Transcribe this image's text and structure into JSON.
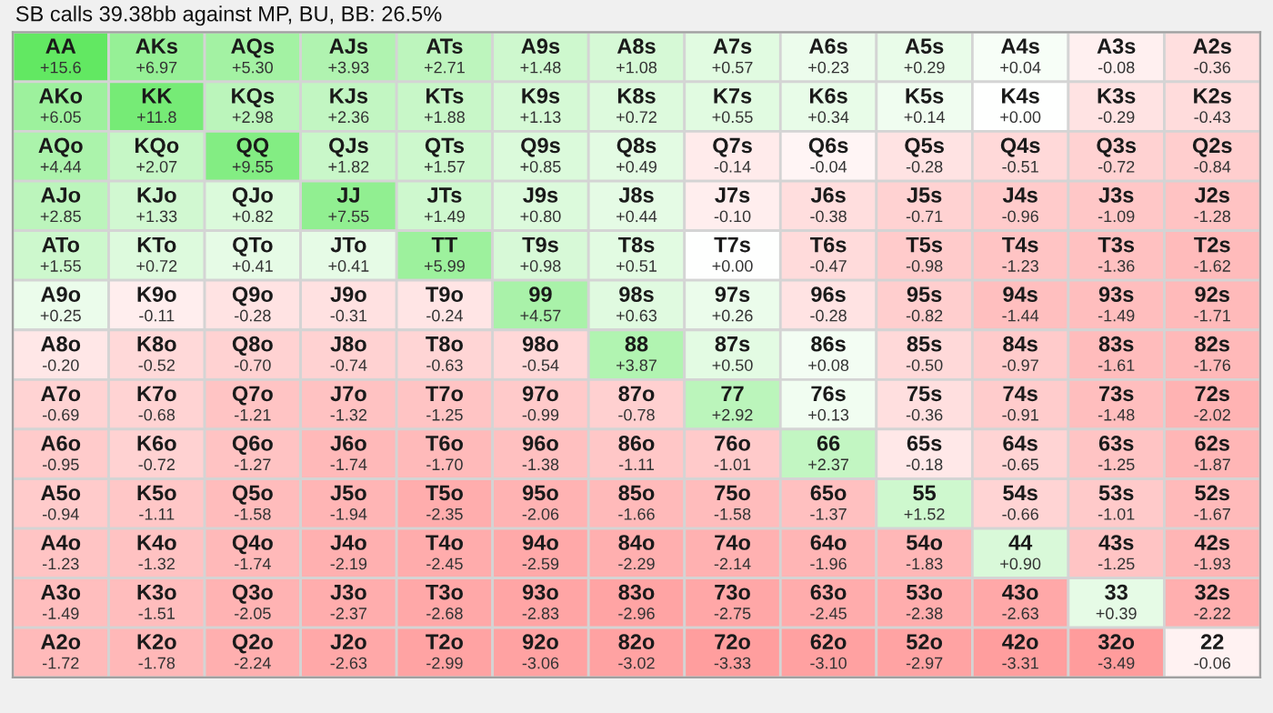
{
  "chart_data": {
    "type": "heatmap",
    "title": "SB calls 39.38bb against MP, BU, BB: 26.5%",
    "categories": [
      null,
      null,
      null,
      null,
      null,
      null,
      null,
      null,
      null,
      null,
      null,
      null,
      null
    ],
    "y_categories": [
      null,
      null,
      null,
      null,
      null,
      null,
      null,
      null,
      null,
      null,
      null,
      null,
      null
    ],
    "cells": [
      [
        15.6,
        6.97,
        5.3,
        3.93,
        2.71,
        1.48,
        1.08,
        0.57,
        0.23,
        0.29,
        0.04,
        -0.08,
        -0.36
      ],
      [
        6.05,
        11.8,
        2.98,
        2.36,
        1.88,
        1.13,
        0.72,
        0.55,
        0.34,
        0.14,
        0.0,
        -0.29,
        -0.43
      ],
      [
        4.44,
        2.07,
        9.55,
        1.82,
        1.57,
        0.85,
        0.49,
        -0.14,
        -0.04,
        -0.28,
        -0.51,
        -0.72,
        -0.84
      ],
      [
        2.85,
        1.33,
        0.82,
        7.55,
        1.49,
        0.8,
        0.44,
        -0.1,
        -0.38,
        -0.71,
        -0.96,
        -1.09,
        -1.28
      ],
      [
        1.55,
        0.72,
        0.41,
        0.41,
        5.99,
        0.98,
        0.51,
        0.0,
        -0.47,
        -0.98,
        -1.23,
        -1.36,
        -1.62
      ],
      [
        0.25,
        -0.11,
        -0.28,
        -0.31,
        -0.24,
        4.57,
        0.63,
        0.26,
        -0.28,
        -0.82,
        -1.44,
        -1.49,
        -1.71
      ],
      [
        -0.2,
        -0.52,
        -0.7,
        -0.74,
        -0.63,
        -0.54,
        3.87,
        0.5,
        0.08,
        -0.5,
        -0.97,
        -1.61,
        -1.76
      ],
      [
        -0.69,
        -0.68,
        -1.21,
        -1.32,
        -1.25,
        -0.99,
        -0.78,
        2.92,
        0.13,
        -0.36,
        -0.91,
        -1.48,
        -2.02
      ],
      [
        -0.95,
        -0.72,
        -1.27,
        -1.74,
        -1.7,
        -1.38,
        -1.11,
        -1.01,
        2.37,
        -0.18,
        -0.65,
        -1.25,
        -1.87
      ],
      [
        -0.94,
        -1.11,
        -1.58,
        -1.94,
        -2.35,
        -2.06,
        -1.66,
        -1.58,
        -1.37,
        1.52,
        -0.66,
        -1.01,
        -1.67
      ],
      [
        -1.23,
        -1.32,
        -1.74,
        -2.19,
        -2.45,
        -2.59,
        -2.29,
        -2.14,
        -1.96,
        -1.83,
        0.9,
        -1.25,
        -1.93
      ],
      [
        -1.49,
        -1.51,
        -2.05,
        -2.37,
        -2.68,
        -2.83,
        -2.96,
        -2.75,
        -2.45,
        -2.38,
        -2.63,
        0.39,
        -2.22
      ],
      [
        -1.72,
        -1.78,
        -2.24,
        -2.63,
        -2.99,
        -3.06,
        -3.02,
        -3.33,
        -3.1,
        -2.97,
        -3.31,
        -3.49,
        -0.06
      ]
    ],
    "cell_labels": [
      [
        "+15.6",
        "+6.97",
        "+5.30",
        "+3.93",
        "+2.71",
        "+1.48",
        "+1.08",
        "+0.57",
        "+0.23",
        "+0.29",
        "+0.04",
        "-0.08",
        "-0.36"
      ],
      [
        "+6.05",
        "+11.8",
        "+2.98",
        "+2.36",
        "+1.88",
        "+1.13",
        "+0.72",
        "+0.55",
        "+0.34",
        "+0.14",
        "+0.00",
        "-0.29",
        "-0.43"
      ],
      [
        "+4.44",
        "+2.07",
        "+9.55",
        "+1.82",
        "+1.57",
        "+0.85",
        "+0.49",
        "-0.14",
        "-0.04",
        "-0.28",
        "-0.51",
        "-0.72",
        "-0.84"
      ],
      [
        "+2.85",
        "+1.33",
        "+0.82",
        "+7.55",
        "+1.49",
        "+0.80",
        "+0.44",
        "-0.10",
        "-0.38",
        "-0.71",
        "-0.96",
        "-1.09",
        "-1.28"
      ],
      [
        "+1.55",
        "+0.72",
        "+0.41",
        "+0.41",
        "+5.99",
        "+0.98",
        "+0.51",
        "+0.00",
        "-0.47",
        "-0.98",
        "-1.23",
        "-1.36",
        "-1.62"
      ],
      [
        "+0.25",
        "-0.11",
        "-0.28",
        "-0.31",
        "-0.24",
        "+4.57",
        "+0.63",
        "+0.26",
        "-0.28",
        "-0.82",
        "-1.44",
        "-1.49",
        "-1.71"
      ],
      [
        "-0.20",
        "-0.52",
        "-0.70",
        "-0.74",
        "-0.63",
        "-0.54",
        "+3.87",
        "+0.50",
        "+0.08",
        "-0.50",
        "-0.97",
        "-1.61",
        "-1.76"
      ],
      [
        "-0.69",
        "-0.68",
        "-1.21",
        "-1.32",
        "-1.25",
        "-0.99",
        "-0.78",
        "+2.92",
        "+0.13",
        "-0.36",
        "-0.91",
        "-1.48",
        "-2.02"
      ],
      [
        "-0.95",
        "-0.72",
        "-1.27",
        "-1.74",
        "-1.70",
        "-1.38",
        "-1.11",
        "-1.01",
        "+2.37",
        "-0.18",
        "-0.65",
        "-1.25",
        "-1.87"
      ],
      [
        "-0.94",
        "-1.11",
        "-1.58",
        "-1.94",
        "-2.35",
        "-2.06",
        "-1.66",
        "-1.58",
        "-1.37",
        "+1.52",
        "-0.66",
        "-1.01",
        "-1.67"
      ],
      [
        "-1.23",
        "-1.32",
        "-1.74",
        "-2.19",
        "-2.45",
        "-2.59",
        "-2.29",
        "-2.14",
        "-1.96",
        "-1.83",
        "+0.90",
        "-1.25",
        "-1.93"
      ],
      [
        "-1.49",
        "-1.51",
        "-2.05",
        "-2.37",
        "-2.68",
        "-2.83",
        "-2.96",
        "-2.75",
        "-2.45",
        "-2.38",
        "-2.63",
        "+0.39",
        "-2.22"
      ],
      [
        "-1.72",
        "-1.78",
        "-2.24",
        "-2.63",
        "-2.99",
        "-3.06",
        "-3.02",
        "-3.33",
        "-3.10",
        "-2.97",
        "-3.31",
        "-3.49",
        "-0.06"
      ]
    ],
    "annotations": [
      "AA",
      "AKs",
      "AQs",
      "AJs",
      "ATs",
      "A9s",
      "A8s",
      "A7s",
      "A6s",
      "A5s",
      "A4s",
      "A3s",
      "A2s",
      "AKo",
      "KK",
      "KQs",
      "KJs",
      "KTs",
      "K9s",
      "K8s",
      "K7s",
      "K6s",
      "K5s",
      "K4s",
      "K3s",
      "K2s",
      "AQo",
      "KQo",
      "QQ",
      "QJs",
      "QTs",
      "Q9s",
      "Q8s",
      "Q7s",
      "Q6s",
      "Q5s",
      "Q4s",
      "Q3s",
      "Q2s",
      "AJo",
      "KJo",
      "QJo",
      "JJ",
      "JTs",
      "J9s",
      "J8s",
      "J7s",
      "J6s",
      "J5s",
      "J4s",
      "J3s",
      "J2s",
      "ATo",
      "KTo",
      "QTo",
      "JTo",
      "TT",
      "T9s",
      "T8s",
      "T7s",
      "T6s",
      "T5s",
      "T4s",
      "T3s",
      "T2s",
      "A9o",
      "K9o",
      "Q9o",
      "J9o",
      "T9o",
      "99",
      "98s",
      "97s",
      "96s",
      "95s",
      "94s",
      "93s",
      "92s",
      "A8o",
      "K8o",
      "Q8o",
      "J8o",
      "T8o",
      "98o",
      "88",
      "87s",
      "86s",
      "85s",
      "84s",
      "83s",
      "82s",
      "A7o",
      "K7o",
      "Q7o",
      "J7o",
      "T7o",
      "97o",
      "87o",
      "77",
      "76s",
      "75s",
      "74s",
      "73s",
      "72s",
      "A6o",
      "K6o",
      "Q6o",
      "J6o",
      "T6o",
      "96o",
      "86o",
      "76o",
      "66",
      "65s",
      "64s",
      "63s",
      "62s",
      "A5o",
      "K5o",
      "Q5o",
      "J5o",
      "T5o",
      "95o",
      "85o",
      "75o",
      "65o",
      "55",
      "54s",
      "53s",
      "52s",
      "A4o",
      "K4o",
      "Q4o",
      "J4o",
      "T4o",
      "94o",
      "84o",
      "74o",
      "64o",
      "54o",
      "44",
      "43s",
      "42s",
      "A3o",
      "K3o",
      "Q3o",
      "J3o",
      "T3o",
      "93o",
      "83o",
      "73o",
      "63o",
      "53o",
      "43o",
      "33",
      "32s",
      "A2o",
      "K2o",
      "Q2o",
      "J2o",
      "T2o",
      "92o",
      "82o",
      "72o",
      "62o",
      "52o",
      "42o",
      "32o",
      "22"
    ]
  }
}
